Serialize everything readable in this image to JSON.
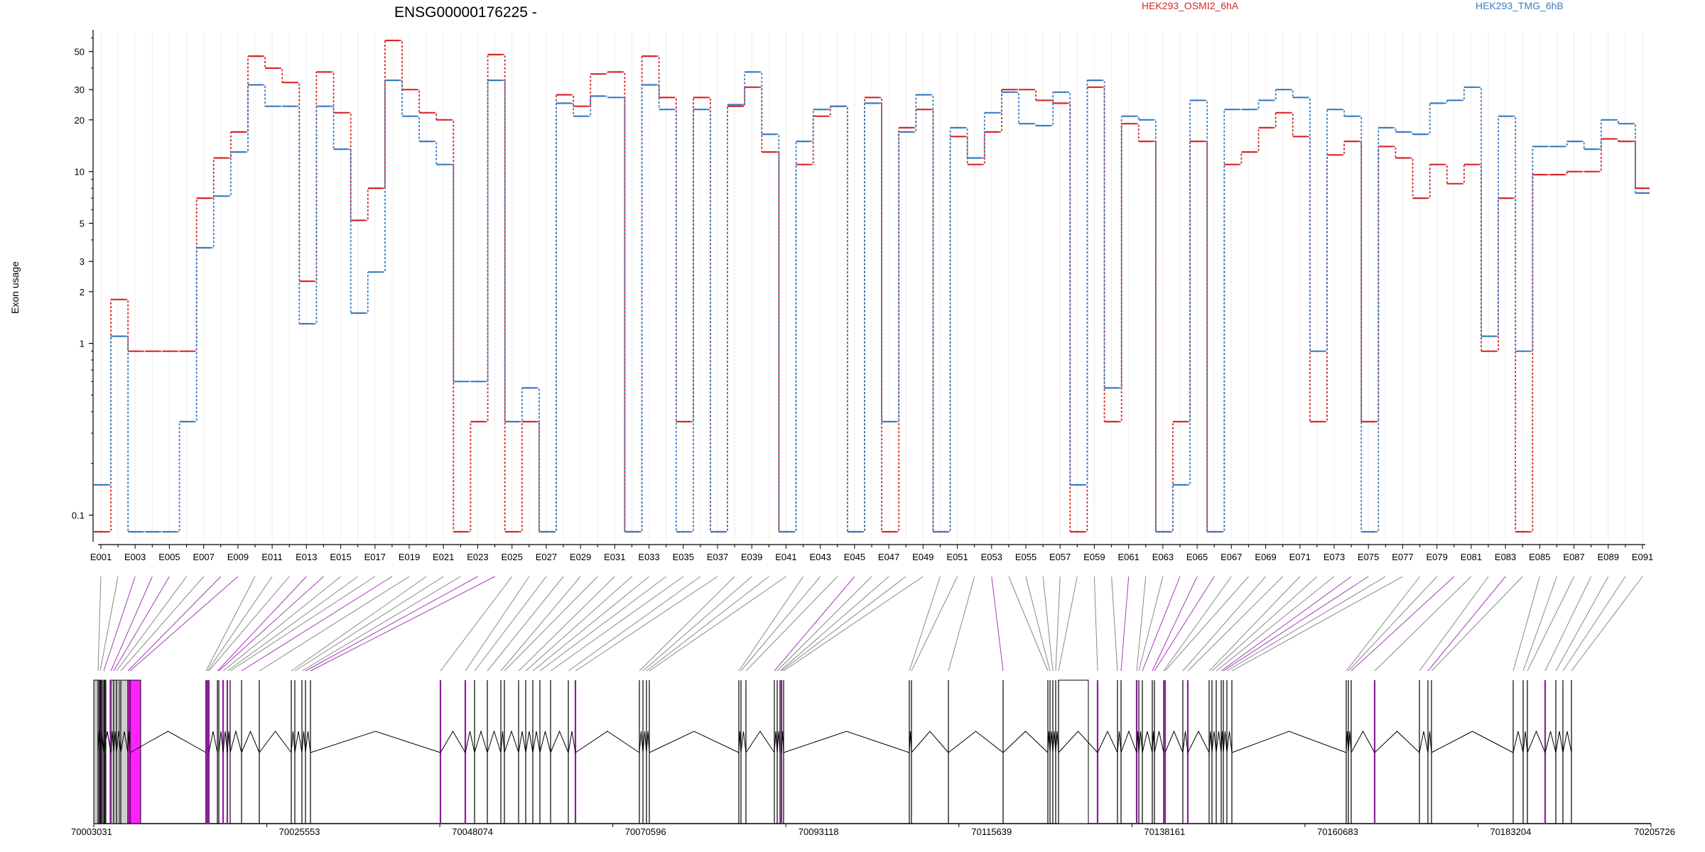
{
  "chart_data": {
    "type": "line",
    "title": "ENSG00000176225 -",
    "ylabel": "Exon usage",
    "xlabel": "",
    "yscale": "log",
    "ylim": [
      0.07,
      65
    ],
    "ytick_values": [
      0.1,
      1,
      2,
      3,
      5,
      10,
      20,
      30,
      50
    ],
    "yticks": [
      "0.1",
      "1",
      "2",
      "3",
      "5",
      "10",
      "20",
      "30",
      "50"
    ],
    "grid": "vertical lines at each exon",
    "legend_position": "top",
    "exons": [
      "E001",
      "E002",
      "E003",
      "E004",
      "E005",
      "E006",
      "E007",
      "E008",
      "E009",
      "E010",
      "E011",
      "E012",
      "E013",
      "E014",
      "E015",
      "E016",
      "E017",
      "E018",
      "E019",
      "E020",
      "E021",
      "E022",
      "E023",
      "E024",
      "E025",
      "E026",
      "E027",
      "E028",
      "E029",
      "E030",
      "E031",
      "E032",
      "E033",
      "E034",
      "E035",
      "E036",
      "E037",
      "E038",
      "E039",
      "E040",
      "E041",
      "E042",
      "E043",
      "E044",
      "E045",
      "E046",
      "E047",
      "E048",
      "E049",
      "E050",
      "E051",
      "E052",
      "E053",
      "E054",
      "E055",
      "E056",
      "E057",
      "E058",
      "E059",
      "E060",
      "E061",
      "E062",
      "E063",
      "E064",
      "E065",
      "E066",
      "E067",
      "E068",
      "E069",
      "E070",
      "E071",
      "E072",
      "E073",
      "E074",
      "E075",
      "E076",
      "E077",
      "E078",
      "E079",
      "E080",
      "E081",
      "E082",
      "E083",
      "E084",
      "E085",
      "E086",
      "E087",
      "E088",
      "E089",
      "E090",
      "E091"
    ],
    "xtick_labels": [
      "E001",
      "E003",
      "E005",
      "E007",
      "E009",
      "E011",
      "E013",
      "E015",
      "E017",
      "E019",
      "E021",
      "E023",
      "E025",
      "E027",
      "E029",
      "E031",
      "E033",
      "E035",
      "E037",
      "E039",
      "E041",
      "E043",
      "E045",
      "E047",
      "E049",
      "E051",
      "E053",
      "E055",
      "E057",
      "E059",
      "E061",
      "E063",
      "E065",
      "E067",
      "E069",
      "E071",
      "E073",
      "E075",
      "E077",
      "E079",
      "E081",
      "E083",
      "E085",
      "E087",
      "E089",
      "E091"
    ],
    "series": [
      {
        "name": "HEK293_OSMI2_6hA",
        "color": "#d62728",
        "values": [
          0.08,
          1.8,
          0.9,
          0.9,
          0.9,
          0.9,
          7,
          12,
          17,
          47,
          40,
          33,
          2.3,
          38,
          22,
          5.2,
          8,
          58,
          30,
          22,
          20,
          0.08,
          0.35,
          48,
          0.08,
          0.35,
          0.08,
          28,
          24,
          37,
          38,
          0.08,
          47,
          27,
          0.35,
          27,
          0.08,
          24,
          31,
          13,
          0.08,
          11,
          21,
          24,
          0.08,
          27,
          0.08,
          18,
          23,
          0.08,
          16,
          11,
          17,
          30,
          30,
          26,
          25,
          0.08,
          31,
          0.35,
          19,
          15,
          0.08,
          0.35,
          15,
          0.08,
          11,
          13,
          18,
          22,
          16,
          0.35,
          12.5,
          15,
          0.35,
          14,
          12,
          7,
          11,
          8.5,
          11,
          0.9,
          7,
          0.08,
          9.6,
          9.6,
          10,
          10,
          15.5,
          15,
          8
        ]
      },
      {
        "name": "HEK293_TMG_6hB",
        "color": "#3b7bbf",
        "values": [
          0.15,
          1.1,
          0.08,
          0.08,
          0.08,
          0.35,
          3.6,
          7.2,
          13,
          32,
          24,
          24,
          1.3,
          24,
          13.5,
          1.5,
          2.6,
          34,
          21,
          15,
          11,
          0.6,
          0.6,
          34,
          0.35,
          0.55,
          0.08,
          25,
          21,
          27.5,
          27,
          0.08,
          32,
          23,
          0.08,
          23,
          0.08,
          24.5,
          38,
          16.5,
          0.08,
          15,
          23,
          24,
          0.08,
          25,
          0.35,
          17,
          28,
          0.08,
          18,
          12,
          22,
          29,
          19,
          18.5,
          29,
          0.15,
          34,
          0.55,
          21,
          20,
          0.08,
          0.15,
          26,
          0.08,
          23,
          23,
          26,
          30,
          27,
          0.9,
          23,
          21,
          0.08,
          18,
          17,
          16.5,
          25,
          26,
          31,
          1.1,
          21,
          0.9,
          14,
          14,
          15,
          13.5,
          20,
          19,
          7.5
        ]
      }
    ],
    "genome_ticks": [
      "70003031",
      "70025553",
      "70048074",
      "70070596",
      "70093118",
      "70115639",
      "70138161",
      "70160683",
      "70183204",
      "70205726"
    ]
  }
}
